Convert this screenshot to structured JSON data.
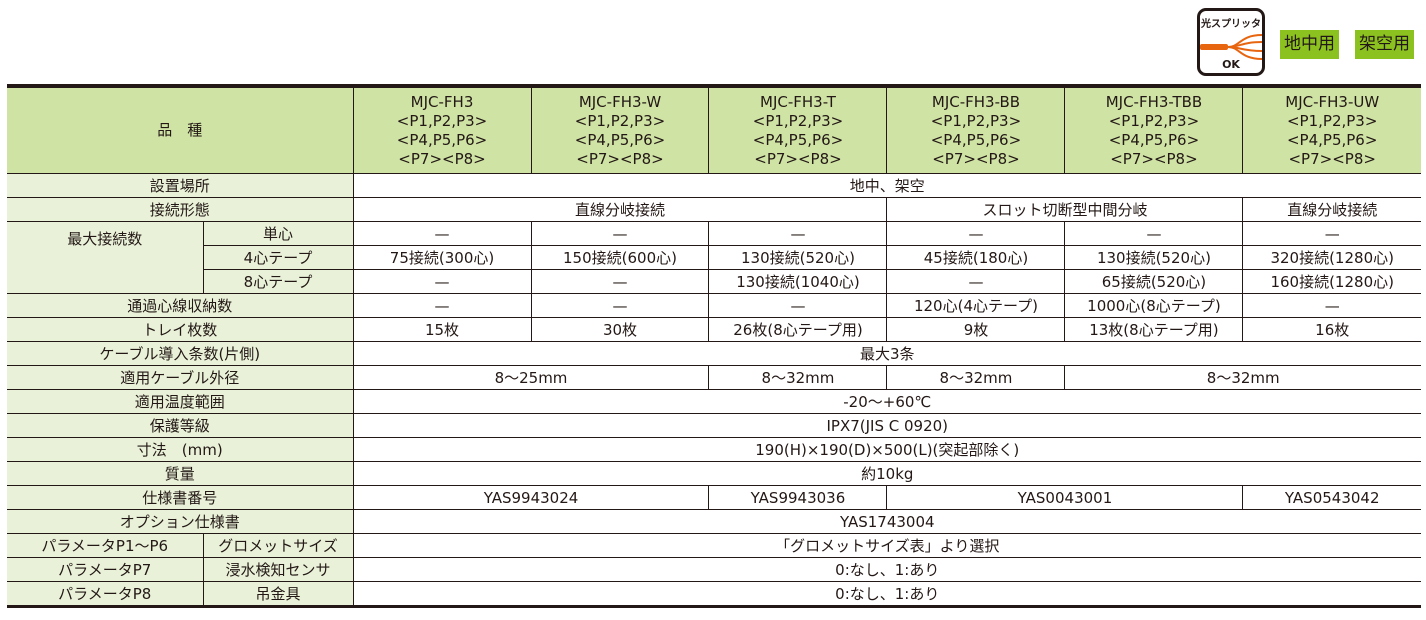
{
  "badge": {
    "title": "光スプリッタ",
    "ok": "OK",
    "icon": "optical-splitter-icon"
  },
  "tags": [
    "地中用",
    "架空用"
  ],
  "colors": {
    "header": "#cfe3a5",
    "label": "#e9f2d9",
    "tag": "#8cc21f",
    "cable": "#e8650f"
  },
  "header": {
    "label": "品　種",
    "models": [
      [
        "MJC-FH3",
        "<P1,P2,P3>",
        "<P4,P5,P6>",
        "<P7><P8>"
      ],
      [
        "MJC-FH3-W",
        "<P1,P2,P3>",
        "<P4,P5,P6>",
        "<P7><P8>"
      ],
      [
        "MJC-FH3-T",
        "<P1,P2,P3>",
        "<P4,P5,P6>",
        "<P7><P8>"
      ],
      [
        "MJC-FH3-BB",
        "<P1,P2,P3>",
        "<P4,P5,P6>",
        "<P7><P8>"
      ],
      [
        "MJC-FH3-TBB",
        "<P1,P2,P3>",
        "<P4,P5,P6>",
        "<P7><P8>"
      ],
      [
        "MJC-FH3-UW",
        "<P1,P2,P3>",
        "<P4,P5,P6>",
        "<P7><P8>"
      ]
    ]
  },
  "rows": {
    "location": {
      "label": "設置場所",
      "value": "地中、架空"
    },
    "connection": {
      "label": "接続形態",
      "values": [
        "直線分岐接続",
        "スロット切断型中間分岐",
        "直線分岐接続"
      ]
    },
    "max": {
      "label": "最大接続数",
      "single": {
        "label": "単心",
        "values": [
          "—",
          "—",
          "—",
          "—",
          "—",
          "—"
        ]
      },
      "tape4": {
        "label": "4心テープ",
        "values": [
          "75接続(300心)",
          "150接続(600心)",
          "130接続(520心)",
          "45接続(180心)",
          "130接続(520心)",
          "320接続(1280心)"
        ]
      },
      "tape8": {
        "label": "8心テープ",
        "values": [
          "—",
          "—",
          "130接続(1040心)",
          "—",
          "65接続(520心)",
          "160接続(1280心)"
        ]
      }
    },
    "passthrough": {
      "label": "通過心線収納数",
      "values": [
        "—",
        "—",
        "—",
        "120心(4心テープ)",
        "1000心(8心テープ)",
        "—"
      ]
    },
    "tray": {
      "label": "トレイ枚数",
      "values": [
        "15枚",
        "30枚",
        "26枚(8心テープ用)",
        "9枚",
        "13枚(8心テープ用)",
        "16枚"
      ]
    },
    "cable_in": {
      "label": "ケーブル導入条数(片側)",
      "value": "最大3条"
    },
    "cable_od": {
      "label": "適用ケーブル外径",
      "values": [
        "8～25mm",
        "8～32mm",
        "8～32mm",
        "8～32mm"
      ]
    },
    "temp": {
      "label": "適用温度範囲",
      "value": "-20～+60℃"
    },
    "protect": {
      "label": "保護等級",
      "value": "IPX7(JIS C 0920)"
    },
    "dim": {
      "label": "寸法　(mm)",
      "value": "190(H)×190(D)×500(L)(突起部除く)"
    },
    "mass": {
      "label": "質量",
      "value": "約10kg"
    },
    "spec": {
      "label": "仕様書番号",
      "values": [
        "YAS9943024",
        "YAS9943036",
        "YAS0043001",
        "YAS0543042"
      ]
    },
    "option": {
      "label": "オプション仕様書",
      "value": "YAS1743004"
    },
    "p16": {
      "label": "パラメータP1～P6",
      "sub": "グロメットサイズ",
      "value": "「グロメットサイズ表」より選択"
    },
    "p7": {
      "label": "パラメータP7",
      "sub": "浸水検知センサ",
      "value": "0:なし、1:あり"
    },
    "p8": {
      "label": "パラメータP8",
      "sub": "吊金具",
      "value": "0:なし、1:あり"
    }
  }
}
